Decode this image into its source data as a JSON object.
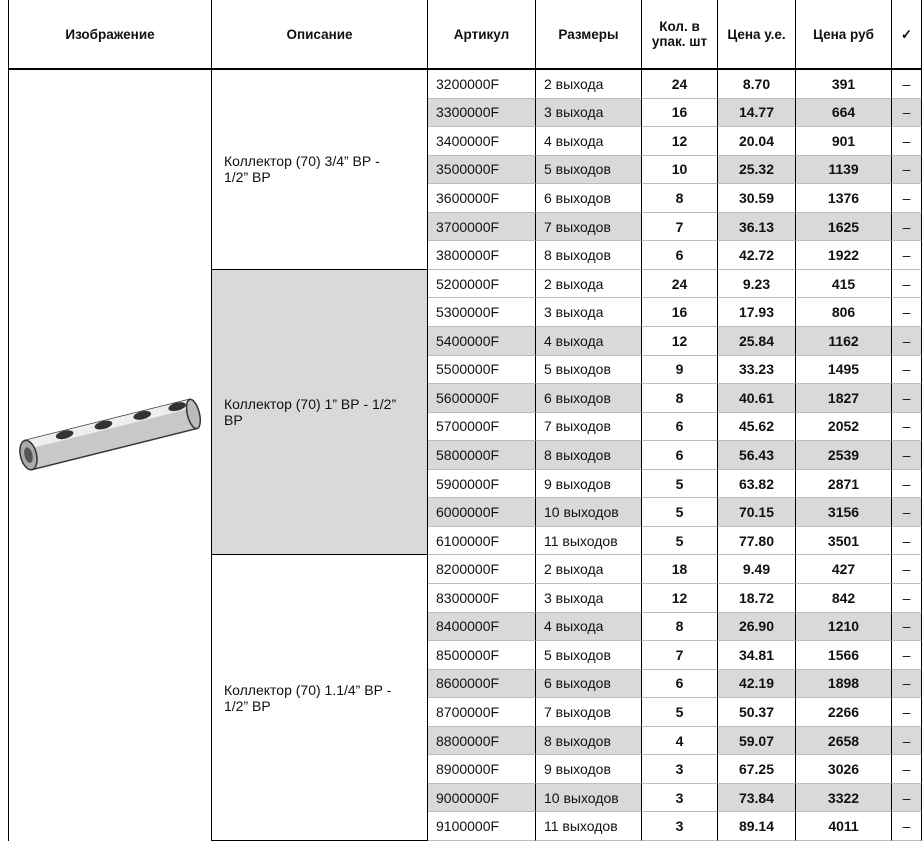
{
  "table": {
    "header": [
      "Изображение",
      "Описание",
      "Артикул",
      "Размеры",
      "Кол. в упак. шт",
      "Цена у.е.",
      "Цена руб",
      "✓"
    ],
    "groups": [
      {
        "description": "Коллектор (70) 3/4” ВР - 1/2” ВР",
        "rows": [
          [
            "3200000F",
            "2 выхода",
            "24",
            "8.70",
            "391",
            "–"
          ],
          [
            "3300000F",
            "3 выхода",
            "16",
            "14.77",
            "664",
            "–"
          ],
          [
            "3400000F",
            "4 выхода",
            "12",
            "20.04",
            "901",
            "–"
          ],
          [
            "3500000F",
            "5 выходов",
            "10",
            "25.32",
            "1139",
            "–"
          ],
          [
            "3600000F",
            "6 выходов",
            "8",
            "30.59",
            "1376",
            "–"
          ],
          [
            "3700000F",
            "7 выходов",
            "7",
            "36.13",
            "1625",
            "–"
          ],
          [
            "3800000F",
            "8 выходов",
            "6",
            "42.72",
            "1922",
            "–"
          ]
        ]
      },
      {
        "description": "Коллектор (70) 1” ВР - 1/2” ВР",
        "rows": [
          [
            "5200000F",
            "2 выхода",
            "24",
            "9.23",
            "415",
            "–"
          ],
          [
            "5300000F",
            "3 выхода",
            "16",
            "17.93",
            "806",
            "–"
          ],
          [
            "5400000F",
            "4 выхода",
            "12",
            "25.84",
            "1162",
            "–"
          ],
          [
            "5500000F",
            "5 выходов",
            "9",
            "33.23",
            "1495",
            "–"
          ],
          [
            "5600000F",
            "6 выходов",
            "8",
            "40.61",
            "1827",
            "–"
          ],
          [
            "5700000F",
            "7 выходов",
            "6",
            "45.62",
            "2052",
            "–"
          ],
          [
            "5800000F",
            "8 выходов",
            "6",
            "56.43",
            "2539",
            "–"
          ],
          [
            "5900000F",
            "9 выходов",
            "5",
            "63.82",
            "2871",
            "–"
          ],
          [
            "6000000F",
            "10 выходов",
            "5",
            "70.15",
            "3156",
            "–"
          ],
          [
            "6100000F",
            "11 выходов",
            "5",
            "77.80",
            "3501",
            "–"
          ]
        ]
      },
      {
        "description": "Коллектор (70) 1.1/4” ВР - 1/2” ВР",
        "rows": [
          [
            "8200000F",
            "2 выхода",
            "18",
            "9.49",
            "427",
            "–"
          ],
          [
            "8300000F",
            "3 выхода",
            "12",
            "18.72",
            "842",
            "–"
          ],
          [
            "8400000F",
            "4 выхода",
            "8",
            "26.90",
            "1210",
            "–"
          ],
          [
            "8500000F",
            "5 выходов",
            "7",
            "34.81",
            "1566",
            "–"
          ],
          [
            "8600000F",
            "6 выходов",
            "6",
            "42.19",
            "1898",
            "–"
          ],
          [
            "8700000F",
            "7 выходов",
            "5",
            "50.37",
            "2266",
            "–"
          ],
          [
            "8800000F",
            "8 выходов",
            "4",
            "59.07",
            "2658",
            "–"
          ],
          [
            "8900000F",
            "9 выходов",
            "3",
            "67.25",
            "3026",
            "–"
          ],
          [
            "9000000F",
            "10 выходов",
            "3",
            "73.84",
            "3322",
            "–"
          ],
          [
            "9100000F",
            "11 выходов",
            "3",
            "89.14",
            "4011",
            "–"
          ]
        ]
      }
    ]
  }
}
